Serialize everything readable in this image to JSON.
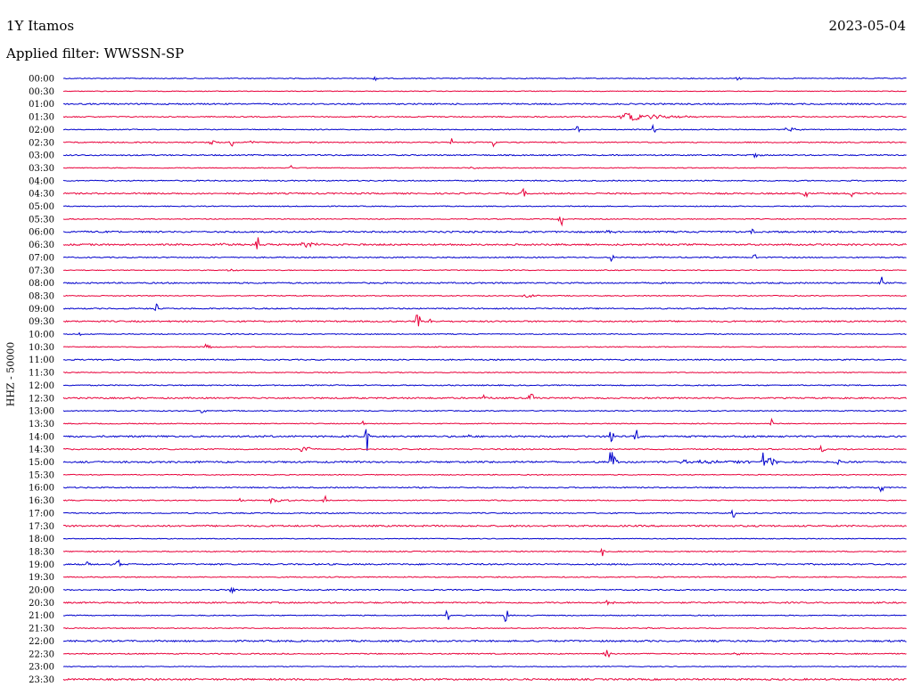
{
  "header": {
    "station": "1Y Itamos",
    "date": "2023-05-04",
    "filter_label": "Applied filter: WWSSN-SP",
    "ylabel": "HHZ - 50000"
  },
  "chart_data": {
    "type": "line",
    "title": "1Y Itamos",
    "subtitle": "Applied filter: WWSSN-SP",
    "ylabel": "HHZ - 50000",
    "row_labels": [
      "00:00",
      "00:30",
      "01:00",
      "01:30",
      "02:00",
      "02:30",
      "03:00",
      "03:30",
      "04:00",
      "04:30",
      "05:00",
      "05:30",
      "06:00",
      "06:30",
      "07:00",
      "07:30",
      "08:00",
      "08:30",
      "09:00",
      "09:30",
      "10:00",
      "10:30",
      "11:00",
      "11:30",
      "12:00",
      "12:30",
      "13:00",
      "13:30",
      "14:00",
      "14:30",
      "15:00",
      "15:30",
      "16:00",
      "16:30",
      "17:00",
      "17:30",
      "18:00",
      "18:30",
      "19:00",
      "19:30",
      "20:00",
      "20:30",
      "21:00",
      "21:30",
      "22:00",
      "22:30",
      "23:00",
      "23:30"
    ],
    "colors": [
      "#0000cc",
      "#e8003a"
    ],
    "x_unit": "fraction of 30-minute row",
    "background_noise": [
      1,
      0.8,
      1.5,
      1.2,
      1,
      1.2,
      1.3,
      1,
      1.2,
      1.6,
      1,
      1,
      1.8,
      1.8,
      1.2,
      0.9,
      1.5,
      1,
      1.3,
      1.6,
      1,
      1,
      1.3,
      1,
      1.2,
      1.6,
      1.1,
      1,
      1.8,
      1.3,
      1.8,
      1,
      1.3,
      1.1,
      1.2,
      1.8,
      0.9,
      1.1,
      1.6,
      1.1,
      1.3,
      1.6,
      1,
      1,
      1.8,
      1.2,
      0.9,
      1.8
    ],
    "events": [
      {
        "row": 0,
        "x": 0.37,
        "amp": 2.5,
        "dur": 0.005
      },
      {
        "row": 0,
        "x": 0.8,
        "amp": 2.5,
        "dur": 0.005
      },
      {
        "row": 3,
        "x": 0.675,
        "amp": 8,
        "dur": 0.08
      },
      {
        "row": 4,
        "x": 0.61,
        "amp": 7,
        "dur": 0.003
      },
      {
        "row": 4,
        "x": 0.7,
        "amp": 8,
        "dur": 0.003
      },
      {
        "row": 4,
        "x": 0.858,
        "amp": 6,
        "dur": 0.02
      },
      {
        "row": 5,
        "x": 0.175,
        "amp": 5,
        "dur": 0.01
      },
      {
        "row": 5,
        "x": 0.2,
        "amp": 4,
        "dur": 0.004
      },
      {
        "row": 5,
        "x": 0.22,
        "amp": 7,
        "dur": 0.008
      },
      {
        "row": 5,
        "x": 0.46,
        "amp": 9,
        "dur": 0.003
      },
      {
        "row": 5,
        "x": 0.51,
        "amp": 6,
        "dur": 0.003
      },
      {
        "row": 6,
        "x": 0.82,
        "amp": 5,
        "dur": 0.01
      },
      {
        "row": 7,
        "x": 0.27,
        "amp": 6,
        "dur": 0.003
      },
      {
        "row": 7,
        "x": 0.485,
        "amp": 4,
        "dur": 0.01
      },
      {
        "row": 9,
        "x": 0.545,
        "amp": 7,
        "dur": 0.004
      },
      {
        "row": 9,
        "x": 0.88,
        "amp": 6,
        "dur": 0.003
      },
      {
        "row": 9,
        "x": 0.935,
        "amp": 6,
        "dur": 0.003
      },
      {
        "row": 11,
        "x": 0.59,
        "amp": 14,
        "dur": 0.003
      },
      {
        "row": 12,
        "x": 0.645,
        "amp": 5,
        "dur": 0.012
      },
      {
        "row": 12,
        "x": 0.815,
        "amp": 6,
        "dur": 0.012
      },
      {
        "row": 13,
        "x": 0.23,
        "amp": 14,
        "dur": 0.003
      },
      {
        "row": 13,
        "x": 0.29,
        "amp": 5,
        "dur": 0.04
      },
      {
        "row": 13,
        "x": 0.19,
        "amp": 4,
        "dur": 0.03
      },
      {
        "row": 14,
        "x": 0.65,
        "amp": 8,
        "dur": 0.003
      },
      {
        "row": 14,
        "x": 0.82,
        "amp": 5,
        "dur": 0.003
      },
      {
        "row": 15,
        "x": 0.2,
        "amp": 2,
        "dur": 0.03
      },
      {
        "row": 16,
        "x": 0.97,
        "amp": 8,
        "dur": 0.003
      },
      {
        "row": 17,
        "x": 0.55,
        "amp": 3,
        "dur": 0.03
      },
      {
        "row": 18,
        "x": 0.11,
        "amp": 10,
        "dur": 0.003
      },
      {
        "row": 19,
        "x": 0.42,
        "amp": 16,
        "dur": 0.004
      },
      {
        "row": 19,
        "x": 0.435,
        "amp": 6,
        "dur": 0.005
      },
      {
        "row": 20,
        "x": 0.02,
        "amp": 3,
        "dur": 0.01
      },
      {
        "row": 20,
        "x": 0.2,
        "amp": 2,
        "dur": 0.02
      },
      {
        "row": 21,
        "x": 0.17,
        "amp": 7,
        "dur": 0.008
      },
      {
        "row": 25,
        "x": 0.5,
        "amp": 7,
        "dur": 0.008
      },
      {
        "row": 25,
        "x": 0.555,
        "amp": 8,
        "dur": 0.005
      },
      {
        "row": 26,
        "x": 0.165,
        "amp": 4,
        "dur": 0.008
      },
      {
        "row": 27,
        "x": 0.355,
        "amp": 11,
        "dur": 0.002
      },
      {
        "row": 27,
        "x": 0.84,
        "amp": 8,
        "dur": 0.002
      },
      {
        "row": 28,
        "x": 0.36,
        "amp": 22,
        "dur": 0.003
      },
      {
        "row": 28,
        "x": 0.48,
        "amp": 5,
        "dur": 0.006
      },
      {
        "row": 28,
        "x": 0.65,
        "amp": 10,
        "dur": 0.004
      },
      {
        "row": 28,
        "x": 0.68,
        "amp": 8,
        "dur": 0.004
      },
      {
        "row": 29,
        "x": 0.285,
        "amp": 8,
        "dur": 0.02
      },
      {
        "row": 29,
        "x": 0.9,
        "amp": 6,
        "dur": 0.004
      },
      {
        "row": 30,
        "x": 0.65,
        "amp": 26,
        "dur": 0.01
      },
      {
        "row": 30,
        "x": 0.75,
        "amp": 4,
        "dur": 0.12
      },
      {
        "row": 30,
        "x": 0.83,
        "amp": 24,
        "dur": 0.02
      },
      {
        "row": 30,
        "x": 0.92,
        "amp": 7,
        "dur": 0.003
      },
      {
        "row": 32,
        "x": 0.97,
        "amp": 9,
        "dur": 0.003
      },
      {
        "row": 33,
        "x": 0.21,
        "amp": 7,
        "dur": 0.003
      },
      {
        "row": 33,
        "x": 0.25,
        "amp": 5,
        "dur": 0.03
      },
      {
        "row": 33,
        "x": 0.31,
        "amp": 6,
        "dur": 0.003
      },
      {
        "row": 34,
        "x": 0.795,
        "amp": 10,
        "dur": 0.003
      },
      {
        "row": 37,
        "x": 0.64,
        "amp": 8,
        "dur": 0.003
      },
      {
        "row": 38,
        "x": 0.03,
        "amp": 5,
        "dur": 0.004
      },
      {
        "row": 38,
        "x": 0.065,
        "amp": 9,
        "dur": 0.003
      },
      {
        "row": 40,
        "x": 0.2,
        "amp": 9,
        "dur": 0.004
      },
      {
        "row": 41,
        "x": 0.645,
        "amp": 6,
        "dur": 0.01
      },
      {
        "row": 42,
        "x": 0.455,
        "amp": 11,
        "dur": 0.003
      },
      {
        "row": 42,
        "x": 0.525,
        "amp": 12,
        "dur": 0.003
      },
      {
        "row": 43,
        "x": 0.69,
        "amp": 2,
        "dur": 0.01
      },
      {
        "row": 45,
        "x": 0.645,
        "amp": 7,
        "dur": 0.005
      },
      {
        "row": 45,
        "x": 0.8,
        "amp": 2,
        "dur": 0.03
      }
    ]
  }
}
